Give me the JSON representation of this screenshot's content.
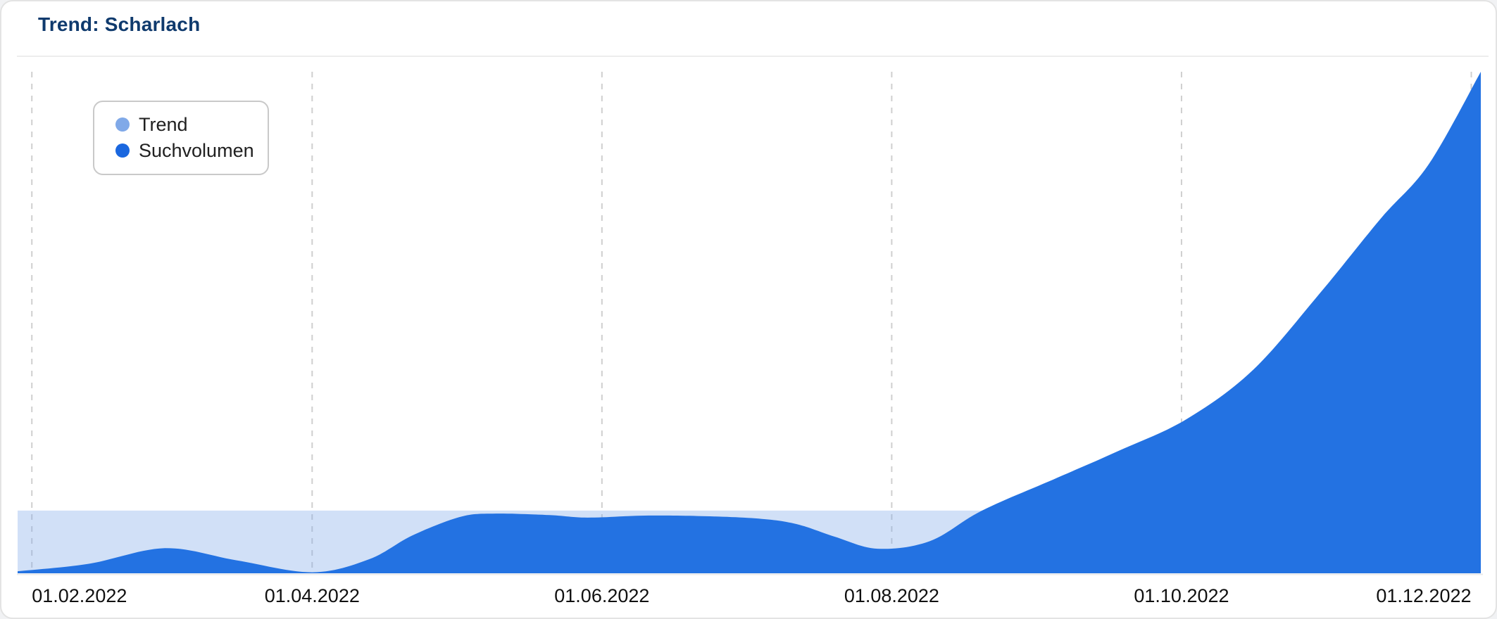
{
  "card": {
    "title": "Trend: Scharlach"
  },
  "legend": {
    "position": "top-left",
    "items": [
      {
        "label": "Trend",
        "dot_color": "#80a9e8"
      },
      {
        "label": "Suchvolumen",
        "dot_color": "#1a67df"
      }
    ]
  },
  "chart_data": {
    "type": "area",
    "title": "Trend: Scharlach",
    "xlabel": "",
    "ylabel": "",
    "y_axis_visible": false,
    "implied_value_range": [
      0,
      100
    ],
    "grid": {
      "vertical_dashed": true,
      "horizontal": false
    },
    "x_domain": [
      "2022-01-29",
      "2022-12-03"
    ],
    "x_ticks": [
      {
        "date": "2022-02-01",
        "label": "01.02.2022"
      },
      {
        "date": "2022-04-01",
        "label": "01.04.2022"
      },
      {
        "date": "2022-06-01",
        "label": "01.06.2022"
      },
      {
        "date": "2022-08-01",
        "label": "01.08.2022"
      },
      {
        "date": "2022-10-01",
        "label": "01.10.2022"
      },
      {
        "date": "2022-12-01",
        "label": "01.12.2022"
      }
    ],
    "series": [
      {
        "name": "Trend",
        "render": "constant-band",
        "constant_value": 12.5,
        "fill": "rgba(122,166,232,0.35)",
        "solid_equivalent": "#d5e3f8"
      },
      {
        "name": "Suchvolumen",
        "render": "smooth-area",
        "fill": "#2372e2",
        "points": [
          [
            "2022-01-29",
            0.4
          ],
          [
            "2022-02-13",
            1.9
          ],
          [
            "2022-03-01",
            5.0
          ],
          [
            "2022-03-16",
            2.6
          ],
          [
            "2022-04-01",
            0.2
          ],
          [
            "2022-04-13",
            2.8
          ],
          [
            "2022-04-22",
            7.5
          ],
          [
            "2022-05-02",
            11.2
          ],
          [
            "2022-05-09",
            11.9
          ],
          [
            "2022-05-21",
            11.6
          ],
          [
            "2022-05-29",
            11.1
          ],
          [
            "2022-06-10",
            11.5
          ],
          [
            "2022-06-22",
            11.4
          ],
          [
            "2022-07-04",
            10.9
          ],
          [
            "2022-07-12",
            9.8
          ],
          [
            "2022-07-20",
            7.3
          ],
          [
            "2022-07-29",
            4.9
          ],
          [
            "2022-08-09",
            6.4
          ],
          [
            "2022-08-20",
            12.5
          ],
          [
            "2022-09-04",
            18.7
          ],
          [
            "2022-09-18",
            24.5
          ],
          [
            "2022-10-02",
            30.7
          ],
          [
            "2022-10-16",
            40.5
          ],
          [
            "2022-10-30",
            55.7
          ],
          [
            "2022-11-12",
            70.8
          ],
          [
            "2022-11-22",
            81.5
          ],
          [
            "2022-12-03",
            100
          ]
        ]
      }
    ],
    "colors": {
      "title": "#0f3a6d",
      "gridline": "#cfcfcf",
      "axis_line": "#e9e9e9",
      "axis_text": "#101010"
    }
  }
}
